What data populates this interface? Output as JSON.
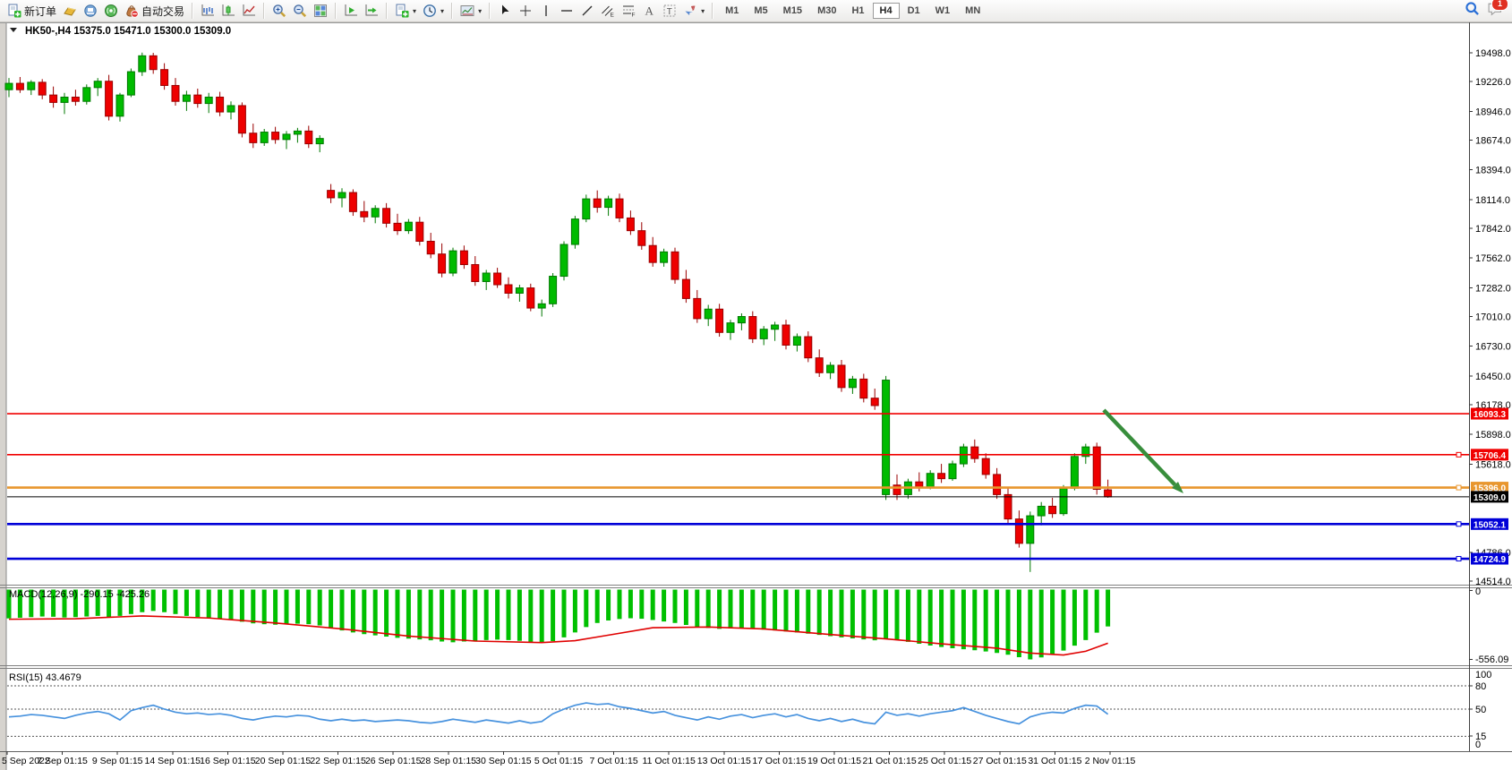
{
  "toolbar": {
    "groups": [
      {
        "buttons": [
          {
            "kind": "docplus",
            "name": "new-order",
            "label": "新订单"
          },
          {
            "kind": "gold",
            "name": "market"
          },
          {
            "kind": "blue",
            "name": "profile"
          },
          {
            "kind": "signal",
            "name": "signals"
          },
          {
            "kind": "pouch",
            "name": "autotrading",
            "label": "自动交易"
          }
        ]
      },
      {
        "buttons": [
          {
            "kind": "bars",
            "name": "bar-chart"
          },
          {
            "kind": "candle",
            "name": "candlestick-chart"
          },
          {
            "kind": "linechart",
            "name": "line-chart"
          }
        ]
      },
      {
        "buttons": [
          {
            "kind": "zoomin",
            "name": "zoom-in"
          },
          {
            "kind": "zoomout",
            "name": "zoom-out"
          },
          {
            "kind": "tiles",
            "name": "tile-windows"
          }
        ]
      },
      {
        "buttons": [
          {
            "kind": "autoscroll",
            "name": "auto-scroll"
          },
          {
            "kind": "shift",
            "name": "chart-shift"
          }
        ]
      },
      {
        "buttons": [
          {
            "kind": "docplus",
            "name": "new-chart",
            "dropdown": true
          },
          {
            "kind": "clock",
            "name": "profiles",
            "dropdown": true
          }
        ]
      },
      {
        "buttons": [
          {
            "kind": "template",
            "name": "templates",
            "dropdown": true
          }
        ]
      },
      {
        "buttons": [
          {
            "kind": "cursor",
            "name": "cursor"
          },
          {
            "kind": "crosshair",
            "name": "crosshair"
          },
          {
            "kind": "vline",
            "name": "vertical-line"
          },
          {
            "kind": "hline",
            "name": "horizontal-line"
          },
          {
            "kind": "trend",
            "name": "trendline"
          },
          {
            "kind": "channel",
            "name": "equidistant-channel"
          },
          {
            "kind": "fibo",
            "name": "fibonacci-retracement"
          },
          {
            "kind": "textA",
            "name": "text"
          },
          {
            "kind": "textT",
            "name": "text-label"
          },
          {
            "kind": "arrows",
            "name": "arrows",
            "dropdown": true
          }
        ]
      }
    ],
    "timeframes": [
      "M1",
      "M5",
      "M15",
      "M30",
      "H1",
      "H4",
      "D1",
      "W1",
      "MN"
    ],
    "active_timeframe": "H4",
    "right_icons": [
      {
        "kind": "search",
        "name": "search"
      },
      {
        "kind": "chat",
        "name": "notifications",
        "badge": "1"
      }
    ]
  },
  "chart_data": {
    "type": "candlestick",
    "symbol": "HK50-",
    "period": "H4",
    "title": "HK50-,H4  15375.0 15471.0 15300.0 15309.0",
    "ohlc_current": {
      "open": "15375.0",
      "high": "15471.0",
      "low": "15300.0",
      "close": "15309.0"
    },
    "y_axis_ticks": [
      "19498.0",
      "19226.0",
      "18946.0",
      "18674.0",
      "18394.0",
      "18114.0",
      "17842.0",
      "17562.0",
      "17282.0",
      "17010.0",
      "16730.0",
      "16450.0",
      "16178.0",
      "15898.0",
      "15618.0",
      "14786.0",
      "14514.0"
    ],
    "x_axis_labels": [
      "5 Sep 2022",
      "7 Sep 01:15",
      "9 Sep 01:15",
      "14 Sep 01:15",
      "16 Sep 01:15",
      "20 Sep 01:15",
      "22 Sep 01:15",
      "26 Sep 01:15",
      "28 Sep 01:15",
      "30 Sep 01:15",
      "5 Oct 01:15",
      "7 Oct 01:15",
      "11 Oct 01:15",
      "13 Oct 01:15",
      "17 Oct 01:15",
      "19 Oct 01:15",
      "21 Oct 01:15",
      "25 Oct 01:15",
      "27 Oct 01:15",
      "31 Oct 01:15",
      "2 Nov 01:15"
    ],
    "hlines": [
      {
        "price": 16093.3,
        "label": "16093.3",
        "color": "#f00000",
        "width": 1.6,
        "handle": false
      },
      {
        "price": 15706.4,
        "label": "15706.4",
        "color": "#f00000",
        "width": 1.6,
        "handle": true
      },
      {
        "price": 15396.0,
        "label": "15396.0",
        "color": "#e8962e",
        "width": 2.6,
        "handle": true
      },
      {
        "price": 15309.0,
        "label": "15309.0",
        "color": "#000000",
        "width": 1,
        "handle": false,
        "current": true
      },
      {
        "price": 15052.1,
        "label": "15052.1",
        "color": "#0000d8",
        "width": 2.6,
        "handle": true
      },
      {
        "price": 14724.9,
        "label": "14724.9",
        "color": "#0000d8",
        "width": 2.6,
        "handle": true
      }
    ],
    "candles": [
      [
        19150,
        19260,
        19080,
        19210
      ],
      [
        19210,
        19270,
        19120,
        19150
      ],
      [
        19150,
        19240,
        19100,
        19220
      ],
      [
        19220,
        19250,
        19060,
        19100
      ],
      [
        19100,
        19180,
        18980,
        19030
      ],
      [
        19030,
        19120,
        18920,
        19080
      ],
      [
        19080,
        19150,
        19000,
        19040
      ],
      [
        19040,
        19200,
        19010,
        19170
      ],
      [
        19170,
        19260,
        19090,
        19230
      ],
      [
        19230,
        19290,
        18860,
        18900
      ],
      [
        18900,
        19120,
        18850,
        19100
      ],
      [
        19100,
        19350,
        19080,
        19320
      ],
      [
        19320,
        19500,
        19280,
        19470
      ],
      [
        19470,
        19498,
        19300,
        19340
      ],
      [
        19340,
        19400,
        19150,
        19190
      ],
      [
        19190,
        19260,
        19000,
        19040
      ],
      [
        19040,
        19140,
        18950,
        19100
      ],
      [
        19100,
        19160,
        18980,
        19020
      ],
      [
        19020,
        19120,
        18930,
        19080
      ],
      [
        19080,
        19130,
        18900,
        18940
      ],
      [
        18940,
        19040,
        18870,
        19000
      ],
      [
        19000,
        19030,
        18700,
        18740
      ],
      [
        18740,
        18830,
        18600,
        18650
      ],
      [
        18650,
        18780,
        18620,
        18750
      ],
      [
        18750,
        18800,
        18640,
        18680
      ],
      [
        18680,
        18760,
        18590,
        18730
      ],
      [
        18730,
        18790,
        18650,
        18760
      ],
      [
        18760,
        18810,
        18600,
        18640
      ],
      [
        18640,
        18720,
        18560,
        18690
      ],
      [
        18200,
        18260,
        18080,
        18130
      ],
      [
        18130,
        18220,
        18040,
        18180
      ],
      [
        18180,
        18210,
        17960,
        18000
      ],
      [
        18000,
        18100,
        17900,
        17950
      ],
      [
        17950,
        18060,
        17890,
        18030
      ],
      [
        18030,
        18080,
        17850,
        17890
      ],
      [
        17890,
        17980,
        17780,
        17820
      ],
      [
        17820,
        17930,
        17790,
        17900
      ],
      [
        17900,
        17950,
        17680,
        17720
      ],
      [
        17720,
        17800,
        17560,
        17600
      ],
      [
        17600,
        17700,
        17380,
        17420
      ],
      [
        17420,
        17660,
        17390,
        17630
      ],
      [
        17630,
        17680,
        17460,
        17500
      ],
      [
        17500,
        17580,
        17300,
        17340
      ],
      [
        17340,
        17450,
        17260,
        17420
      ],
      [
        17420,
        17470,
        17280,
        17310
      ],
      [
        17310,
        17380,
        17180,
        17230
      ],
      [
        17230,
        17310,
        17150,
        17280
      ],
      [
        17280,
        17320,
        17060,
        17090
      ],
      [
        17090,
        17170,
        17010,
        17130
      ],
      [
        17130,
        17420,
        17100,
        17390
      ],
      [
        17390,
        17720,
        17350,
        17690
      ],
      [
        17690,
        17960,
        17650,
        17930
      ],
      [
        17930,
        18160,
        17900,
        18120
      ],
      [
        18120,
        18200,
        17990,
        18040
      ],
      [
        18040,
        18150,
        17960,
        18120
      ],
      [
        18120,
        18170,
        17900,
        17940
      ],
      [
        17940,
        18010,
        17780,
        17820
      ],
      [
        17820,
        17900,
        17640,
        17680
      ],
      [
        17680,
        17760,
        17480,
        17520
      ],
      [
        17520,
        17650,
        17480,
        17620
      ],
      [
        17620,
        17660,
        17320,
        17360
      ],
      [
        17360,
        17450,
        17140,
        17180
      ],
      [
        17180,
        17260,
        16950,
        16990
      ],
      [
        16990,
        17120,
        16920,
        17080
      ],
      [
        17080,
        17130,
        16820,
        16860
      ],
      [
        16860,
        16980,
        16790,
        16950
      ],
      [
        16950,
        17040,
        16880,
        17010
      ],
      [
        17010,
        17060,
        16760,
        16800
      ],
      [
        16800,
        16920,
        16740,
        16890
      ],
      [
        16890,
        16960,
        16780,
        16930
      ],
      [
        16930,
        16980,
        16700,
        16740
      ],
      [
        16740,
        16850,
        16680,
        16820
      ],
      [
        16820,
        16870,
        16580,
        16620
      ],
      [
        16620,
        16700,
        16440,
        16480
      ],
      [
        16480,
        16580,
        16420,
        16550
      ],
      [
        16550,
        16600,
        16300,
        16340
      ],
      [
        16340,
        16450,
        16280,
        16420
      ],
      [
        16420,
        16470,
        16200,
        16240
      ],
      [
        16240,
        16330,
        16130,
        16170
      ],
      [
        15330,
        16450,
        15280,
        16410
      ],
      [
        15420,
        15520,
        15280,
        15330
      ],
      [
        15330,
        15480,
        15290,
        15450
      ],
      [
        15450,
        15540,
        15360,
        15400
      ],
      [
        15400,
        15560,
        15380,
        15530
      ],
      [
        15530,
        15620,
        15440,
        15480
      ],
      [
        15480,
        15650,
        15460,
        15620
      ],
      [
        15620,
        15810,
        15590,
        15780
      ],
      [
        15780,
        15850,
        15630,
        15670
      ],
      [
        15670,
        15720,
        15480,
        15520
      ],
      [
        15520,
        15580,
        15290,
        15330
      ],
      [
        15330,
        15400,
        15060,
        15100
      ],
      [
        15100,
        15180,
        14830,
        14870
      ],
      [
        14870,
        15170,
        14600,
        15130
      ],
      [
        15130,
        15260,
        15040,
        15220
      ],
      [
        15220,
        15300,
        15110,
        15150
      ],
      [
        15150,
        15420,
        15130,
        15390
      ],
      [
        15390,
        15720,
        15370,
        15690
      ],
      [
        15690,
        15810,
        15620,
        15780
      ],
      [
        15780,
        15820,
        15330,
        15380
      ],
      [
        15375,
        15471,
        15300,
        15309
      ]
    ],
    "arrow": {
      "from": [
        1233,
        457
      ],
      "tip": [
        1322,
        550
      ],
      "color": "#388e3c"
    },
    "macd": {
      "label": "MACD(12,26,9)",
      "value_main": "-290.15",
      "value_signal": "-425.26",
      "axis_top": "0",
      "axis_bottom": "-556.09",
      "histogram": [
        -225,
        -220,
        -215,
        -210,
        -212,
        -218,
        -215,
        -210,
        -205,
        -215,
        -205,
        -190,
        -175,
        -165,
        -175,
        -190,
        -205,
        -215,
        -220,
        -228,
        -238,
        -252,
        -265,
        -272,
        -276,
        -272,
        -268,
        -272,
        -282,
        -305,
        -322,
        -338,
        -352,
        -362,
        -372,
        -382,
        -388,
        -394,
        -402,
        -412,
        -418,
        -412,
        -406,
        -400,
        -396,
        -400,
        -406,
        -414,
        -422,
        -408,
        -378,
        -338,
        -295,
        -262,
        -242,
        -230,
        -224,
        -228,
        -238,
        -250,
        -262,
        -278,
        -294,
        -302,
        -310,
        -306,
        -302,
        -308,
        -316,
        -322,
        -330,
        -338,
        -348,
        -358,
        -368,
        -378,
        -386,
        -394,
        -402,
        -388,
        -398,
        -414,
        -430,
        -444,
        -456,
        -466,
        -474,
        -482,
        -492,
        -504,
        -518,
        -538,
        -556,
        -540,
        -515,
        -485,
        -445,
        -400,
        -340,
        -290
      ],
      "signal_points": [
        [
          0,
          -232
        ],
        [
          6,
          -228
        ],
        [
          12,
          -205
        ],
        [
          18,
          -222
        ],
        [
          24,
          -262
        ],
        [
          30,
          -310
        ],
        [
          36,
          -368
        ],
        [
          42,
          -408
        ],
        [
          48,
          -420
        ],
        [
          51,
          -405
        ],
        [
          54,
          -360
        ],
        [
          58,
          -300
        ],
        [
          63,
          -295
        ],
        [
          68,
          -310
        ],
        [
          74,
          -355
        ],
        [
          79,
          -390
        ],
        [
          84,
          -430
        ],
        [
          89,
          -465
        ],
        [
          92,
          -505
        ],
        [
          95,
          -520
        ],
        [
          97,
          -490
        ],
        [
          99,
          -425
        ]
      ]
    },
    "rsi": {
      "label": "RSI(15)",
      "value": "43.4679",
      "axis_labels": [
        "100",
        "80",
        "50",
        "15",
        "0"
      ],
      "dashed_levels": [
        80,
        50,
        15
      ],
      "values": [
        40,
        41,
        43,
        42,
        40,
        38,
        42,
        45,
        47,
        44,
        36,
        48,
        52,
        55,
        50,
        46,
        44,
        45,
        43,
        44,
        42,
        38,
        36,
        39,
        41,
        40,
        42,
        41,
        37,
        35,
        37,
        35,
        36,
        34,
        35,
        36,
        35,
        33,
        32,
        34,
        37,
        35,
        33,
        36,
        34,
        32,
        35,
        32,
        34,
        44,
        50,
        55,
        58,
        56,
        57,
        53,
        51,
        48,
        45,
        47,
        42,
        39,
        36,
        40,
        37,
        41,
        43,
        39,
        42,
        44,
        40,
        43,
        38,
        35,
        38,
        34,
        37,
        33,
        31,
        46,
        42,
        44,
        41,
        44,
        46,
        48,
        52,
        47,
        42,
        38,
        34,
        31,
        40,
        44,
        46,
        45,
        51,
        55,
        54,
        43.5
      ]
    },
    "colors": {
      "bull": "#00bb00",
      "bull_stroke": "#007800",
      "bear": "#ee0000",
      "bear_stroke": "#990000",
      "macd_hist": "#00c000",
      "macd_signal": "#e00000",
      "rsi_line": "#4792de"
    }
  }
}
